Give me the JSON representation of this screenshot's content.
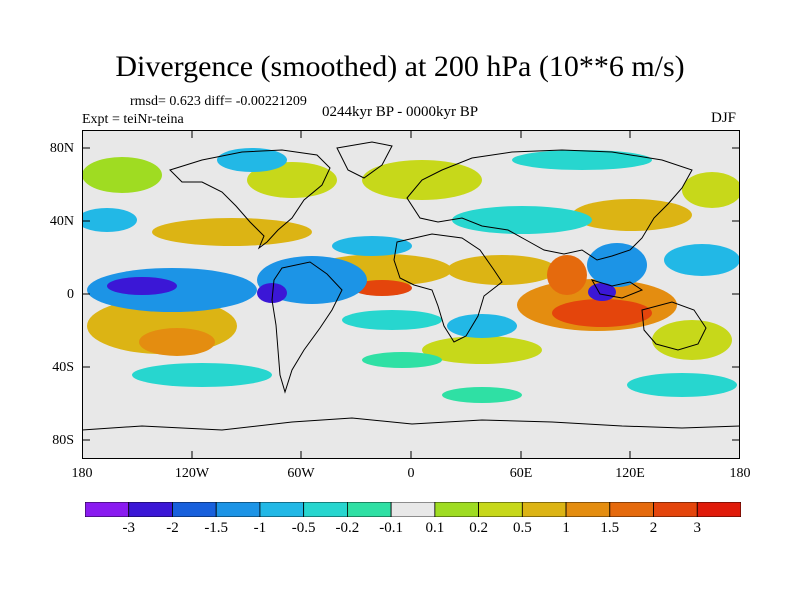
{
  "figure": {
    "title": "Divergence (smoothed) at 200 hPa (10**6 m/s)",
    "stats": "rmsd= 0.623 diff= -0.00221209",
    "experiment": "Expt = teiNr-teina",
    "period": "0244kyr BP - 0000kyr BP",
    "season": "DJF"
  },
  "axes": {
    "lat_labels": [
      "80N",
      "40N",
      "0",
      "40S",
      "80S"
    ],
    "lon_labels": [
      "180",
      "120W",
      "60W",
      "0",
      "60E",
      "120E",
      "180"
    ]
  },
  "colorbar": {
    "levels": [
      "-3",
      "-2",
      "-1.5",
      "-1",
      "-0.5",
      "-0.2",
      "-0.1",
      "0.1",
      "0.2",
      "0.5",
      "1",
      "1.5",
      "2",
      "3"
    ],
    "colors": [
      "#8a1bf0",
      "#3b17d6",
      "#1860dc",
      "#1c94e6",
      "#22b8e6",
      "#27d6cf",
      "#2fe0a4",
      "#e8e8e8",
      "#9fdc22",
      "#c7d81a",
      "#dcb414",
      "#e48d10",
      "#e56a0d",
      "#e4450c",
      "#e01b0a"
    ]
  },
  "palette": {
    "background": "#e8e8e8",
    "coastline": "#000000"
  }
}
